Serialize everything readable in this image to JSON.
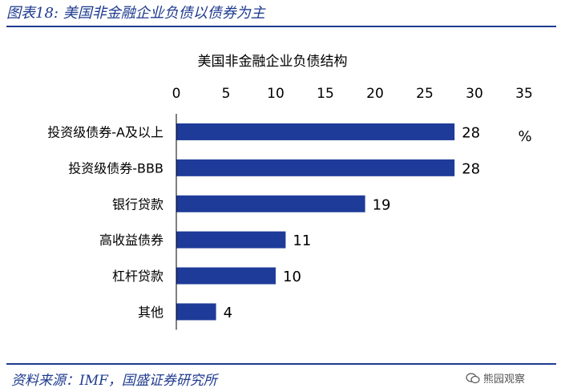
{
  "header": {
    "figure_title": "图表18:  美国非金融企业负债以债券为主"
  },
  "footer": {
    "source": "资料来源：IMF，国盛证券研究所",
    "watermark": "熊园观察",
    "watermark_icon": "wechat-icon"
  },
  "colors": {
    "accent": "#1f3b8f",
    "bar": "#1f3b99"
  },
  "chart_data": {
    "type": "bar",
    "orientation": "horizontal",
    "title": "美国非金融企业负债结构",
    "unit": "%",
    "categories": [
      "投资级债券-A及以上",
      "投资级债券-BBB",
      "银行贷款",
      "高收益债券",
      "杠杆贷款",
      "其他"
    ],
    "values": [
      28,
      28,
      19,
      11,
      10,
      4
    ],
    "data_labels": [
      "28",
      "28",
      "19",
      "11",
      "10",
      "4"
    ],
    "xlim": [
      0,
      35
    ],
    "xticks": [
      0,
      5,
      10,
      15,
      20,
      25,
      30,
      35
    ],
    "x_axis_position": "top",
    "grid": false,
    "legend": false
  }
}
